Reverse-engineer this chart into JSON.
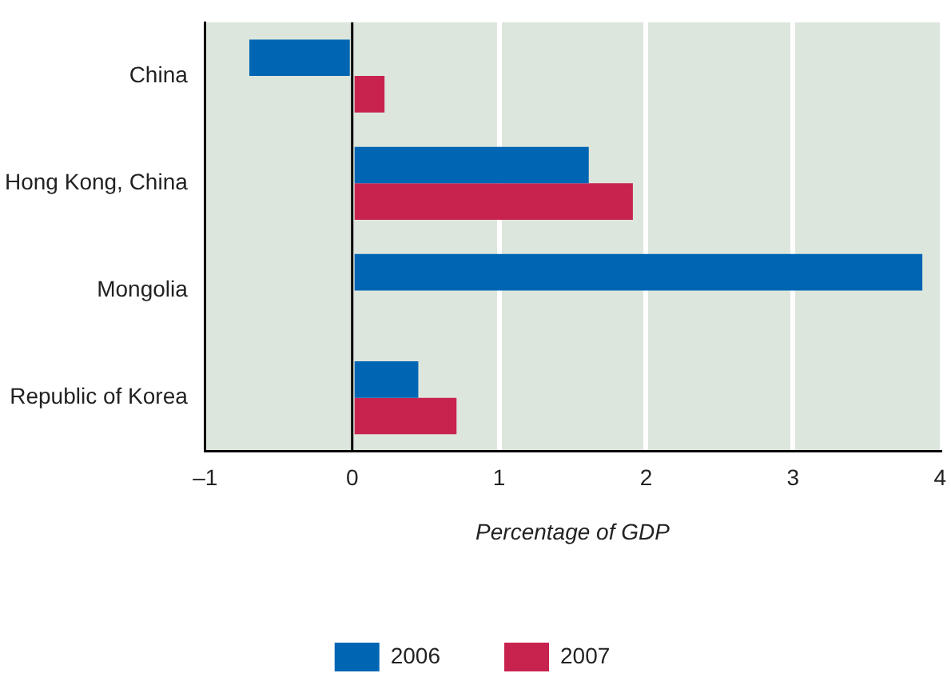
{
  "chart_data": {
    "type": "bar",
    "orientation": "horizontal",
    "xlabel": "Percentage of GDP",
    "categories": [
      "China",
      "Hong Kong, China",
      "Mongolia",
      "Republic of Korea"
    ],
    "series": [
      {
        "name": "2006",
        "color": "#0066b3",
        "values": [
          -0.7,
          1.61,
          3.88,
          0.45
        ]
      },
      {
        "name": "2007",
        "color": "#c8234f",
        "values": [
          0.22,
          1.91,
          null,
          0.71
        ]
      }
    ],
    "xlim": [
      -1,
      4
    ],
    "xticks": [
      {
        "value": -1,
        "label": "–1"
      },
      0,
      1,
      2,
      3,
      4
    ],
    "grid": "x",
    "legend": "bottom"
  }
}
